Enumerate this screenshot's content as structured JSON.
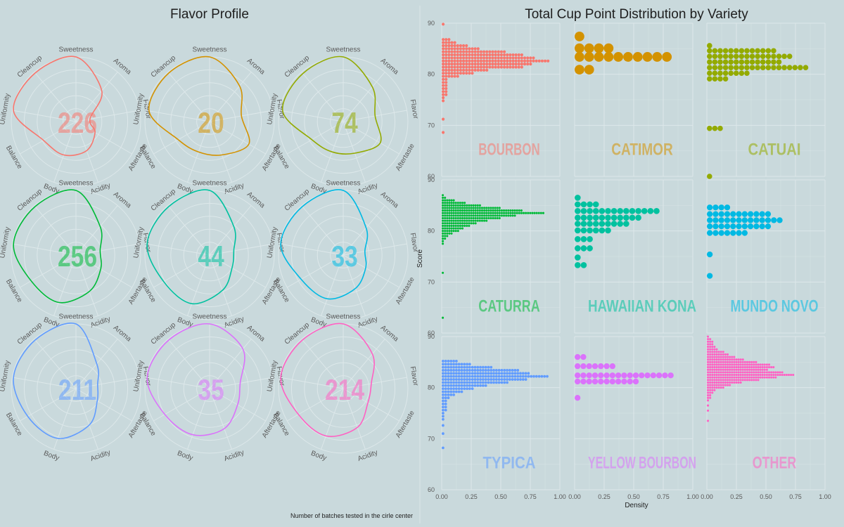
{
  "left_title": "Flavor Profile",
  "right_title": "Total Cup Point Distribution by Variety",
  "caption": "Number of batches tested in the cirle center",
  "radar_axes": [
    "Sweetness",
    "Aroma",
    "Flavor",
    "Aftertaste",
    "Acidity",
    "Body",
    "Balance",
    "Uniformity",
    "Cleancup"
  ],
  "colors": {
    "background": "#c9d9dc",
    "grid": "#dde8ea",
    "axis_text": "#5a5a5a",
    "title_text": "#1e1e1e"
  },
  "chart_data": [
    {
      "type": "radar",
      "title": "Flavor Profile",
      "axes": [
        "Sweetness",
        "Aroma",
        "Flavor",
        "Aftertaste",
        "Acidity",
        "Body",
        "Balance",
        "Uniformity",
        "Cleancup"
      ],
      "panels": [
        {
          "variety": "Bourbon",
          "count": "226",
          "color": "#f8766d",
          "values": [
            1.0,
            0.62,
            0.22,
            0.34,
            0.48,
            0.55,
            0.58,
            0.98,
            0.98
          ]
        },
        {
          "variety": "Catimor",
          "count": "20",
          "color": "#d39200",
          "values": [
            1.0,
            0.72,
            0.5,
            0.7,
            0.55,
            0.5,
            0.56,
            0.95,
            0.98
          ]
        },
        {
          "variety": "Catuai",
          "count": "74",
          "color": "#93aa00",
          "values": [
            1.0,
            0.7,
            0.5,
            0.66,
            0.52,
            0.5,
            0.56,
            0.95,
            0.97
          ]
        },
        {
          "variety": "Caturra",
          "count": "256",
          "color": "#00ba38",
          "values": [
            1.0,
            0.58,
            0.38,
            0.44,
            0.6,
            0.78,
            0.8,
            0.98,
            0.98
          ]
        },
        {
          "variety": "Hawaiian Kona",
          "count": "44",
          "color": "#00c19f",
          "values": [
            1.0,
            0.58,
            0.38,
            0.4,
            0.58,
            0.8,
            0.82,
            0.98,
            0.98
          ]
        },
        {
          "variety": "Mundo Novo",
          "count": "33",
          "color": "#00b9e3",
          "values": [
            1.0,
            0.55,
            0.34,
            0.4,
            0.55,
            0.72,
            0.75,
            0.98,
            0.98
          ]
        },
        {
          "variety": "Typica",
          "count": "211",
          "color": "#619cff",
          "values": [
            1.0,
            0.5,
            0.34,
            0.38,
            0.6,
            0.82,
            0.86,
            0.98,
            0.98
          ]
        },
        {
          "variety": "Yellow Bourbon",
          "count": "35",
          "color": "#db72fb",
          "values": [
            1.0,
            0.8,
            0.48,
            0.5,
            0.66,
            0.76,
            0.8,
            0.98,
            0.98
          ]
        },
        {
          "variety": "Other",
          "count": "214",
          "color": "#ff61c3",
          "values": [
            1.0,
            0.7,
            0.44,
            0.44,
            0.64,
            0.78,
            0.8,
            0.98,
            0.98
          ]
        }
      ]
    },
    {
      "type": "dotplot",
      "title": "Total Cup Point Distribution by Variety",
      "xlabel": "Density",
      "ylabel": "Score",
      "xlim": [
        0,
        1.0
      ],
      "ylim": [
        60,
        90
      ],
      "x_ticks": [
        "0.00",
        "0.25",
        "0.50",
        "0.75",
        "1.00"
      ],
      "y_ticks": [
        "60",
        "70",
        "80",
        "90"
      ],
      "panels": [
        {
          "label": "BOURBON",
          "color": "#f8766d",
          "step": 0.6,
          "bins": [
            [
              89.8,
              0.02
            ],
            [
              86.8,
              0.08
            ],
            [
              86.2,
              0.12
            ],
            [
              85.6,
              0.22
            ],
            [
              85.0,
              0.32
            ],
            [
              84.4,
              0.55
            ],
            [
              83.8,
              0.7
            ],
            [
              83.2,
              0.8
            ],
            [
              82.6,
              0.9
            ],
            [
              82.0,
              0.76
            ],
            [
              81.4,
              0.68
            ],
            [
              80.8,
              0.4
            ],
            [
              80.2,
              0.28
            ],
            [
              79.6,
              0.14
            ],
            [
              79.0,
              0.06
            ],
            [
              78.4,
              0.06
            ],
            [
              77.8,
              0.06
            ],
            [
              77.2,
              0.06
            ],
            [
              76.6,
              0.06
            ],
            [
              76.0,
              0.06
            ],
            [
              75.4,
              0.02
            ],
            [
              74.8,
              0.02
            ],
            [
              71.2,
              0.02
            ],
            [
              68.6,
              0.02
            ]
          ]
        },
        {
          "label": "CATIMOR",
          "color": "#d39200",
          "step": 2.0,
          "bins": [
            [
              87.4,
              0.06
            ],
            [
              85.1,
              0.3
            ],
            [
              83.4,
              0.86
            ],
            [
              80.9,
              0.18
            ]
          ]
        },
        {
          "label": "CATUAI",
          "color": "#93aa00",
          "step": 1.1,
          "bins": [
            [
              85.6,
              0.02
            ],
            [
              84.6,
              0.6
            ],
            [
              83.5,
              0.74
            ],
            [
              82.4,
              0.62
            ],
            [
              81.3,
              0.84
            ],
            [
              80.2,
              0.36
            ],
            [
              79.1,
              0.2
            ],
            [
              69.4,
              0.14
            ],
            [
              60.0,
              0.02
            ]
          ]
        },
        {
          "label": "CATURRA",
          "color": "#00ba38",
          "step": 0.45,
          "bins": [
            [
              87.0,
              0.02
            ],
            [
              86.5,
              0.04
            ],
            [
              86.0,
              0.12
            ],
            [
              85.5,
              0.2
            ],
            [
              85.0,
              0.34
            ],
            [
              84.5,
              0.5
            ],
            [
              84.0,
              0.68
            ],
            [
              83.5,
              0.86
            ],
            [
              83.0,
              0.62
            ],
            [
              82.5,
              0.5
            ],
            [
              82.0,
              0.38
            ],
            [
              81.5,
              0.3
            ],
            [
              81.0,
              0.24
            ],
            [
              80.5,
              0.18
            ],
            [
              80.0,
              0.14
            ],
            [
              79.5,
              0.1
            ],
            [
              79.0,
              0.06
            ],
            [
              78.5,
              0.04
            ],
            [
              78.0,
              0.02
            ],
            [
              77.5,
              0.02
            ],
            [
              71.8,
              0.02
            ],
            [
              63.0,
              0.02
            ]
          ]
        },
        {
          "label": "HAWAIIAN KONA",
          "color": "#00c19f",
          "step": 1.25,
          "bins": [
            [
              86.5,
              0.06
            ],
            [
              85.2,
              0.22
            ],
            [
              83.9,
              0.7
            ],
            [
              82.6,
              0.56
            ],
            [
              81.4,
              0.46
            ],
            [
              80.1,
              0.32
            ],
            [
              78.4,
              0.14
            ],
            [
              76.6,
              0.14
            ],
            [
              74.8,
              0.06
            ],
            [
              73.3,
              0.12
            ]
          ]
        },
        {
          "label": "MUNDO NOVO",
          "color": "#00b9e3",
          "step": 1.2,
          "bins": [
            [
              84.6,
              0.22
            ],
            [
              83.3,
              0.56
            ],
            [
              82.1,
              0.66
            ],
            [
              80.9,
              0.52
            ],
            [
              79.6,
              0.34
            ],
            [
              75.4,
              0.04
            ],
            [
              71.2,
              0.04
            ]
          ]
        },
        {
          "label": "TYPICA",
          "color": "#619cff",
          "step": 0.55,
          "bins": [
            [
              85.2,
              0.14
            ],
            [
              84.6,
              0.24
            ],
            [
              84.0,
              0.44
            ],
            [
              83.4,
              0.66
            ],
            [
              82.8,
              0.74
            ],
            [
              82.2,
              0.9
            ],
            [
              81.6,
              0.72
            ],
            [
              81.0,
              0.56
            ],
            [
              80.4,
              0.38
            ],
            [
              79.8,
              0.26
            ],
            [
              79.2,
              0.18
            ],
            [
              78.6,
              0.12
            ],
            [
              78.0,
              0.06
            ],
            [
              77.4,
              0.04
            ],
            [
              76.8,
              0.04
            ],
            [
              76.2,
              0.04
            ],
            [
              75.6,
              0.04
            ],
            [
              75.0,
              0.02
            ],
            [
              74.4,
              0.02
            ],
            [
              73.8,
              0.02
            ],
            [
              72.6,
              0.02
            ],
            [
              71.0,
              0.02
            ],
            [
              68.2,
              0.02
            ]
          ]
        },
        {
          "label": "YELLOW BOURBON",
          "color": "#db72fb",
          "step": 1.2,
          "bins": [
            [
              86.0,
              0.08
            ],
            [
              84.2,
              0.34
            ],
            [
              82.4,
              0.86
            ],
            [
              81.2,
              0.56
            ],
            [
              78.0,
              0.04
            ]
          ]
        },
        {
          "label": "OTHER",
          "color": "#ff61c3",
          "step": 0.45,
          "bins": [
            [
              90.0,
              0.02
            ],
            [
              89.5,
              0.04
            ],
            [
              89.0,
              0.06
            ],
            [
              88.5,
              0.06
            ],
            [
              88.0,
              0.08
            ],
            [
              87.5,
              0.1
            ],
            [
              87.0,
              0.14
            ],
            [
              86.5,
              0.18
            ],
            [
              86.0,
              0.24
            ],
            [
              85.5,
              0.32
            ],
            [
              85.0,
              0.42
            ],
            [
              84.5,
              0.54
            ],
            [
              84.0,
              0.58
            ],
            [
              83.5,
              0.52
            ],
            [
              83.0,
              0.64
            ],
            [
              82.5,
              0.74
            ],
            [
              82.0,
              0.6
            ],
            [
              81.5,
              0.44
            ],
            [
              81.0,
              0.3
            ],
            [
              80.5,
              0.2
            ],
            [
              80.0,
              0.14
            ],
            [
              79.5,
              0.08
            ],
            [
              79.0,
              0.06
            ],
            [
              78.5,
              0.04
            ],
            [
              78.0,
              0.04
            ],
            [
              77.5,
              0.02
            ],
            [
              76.5,
              0.02
            ],
            [
              75.5,
              0.02
            ],
            [
              73.5,
              0.02
            ]
          ]
        }
      ]
    }
  ]
}
